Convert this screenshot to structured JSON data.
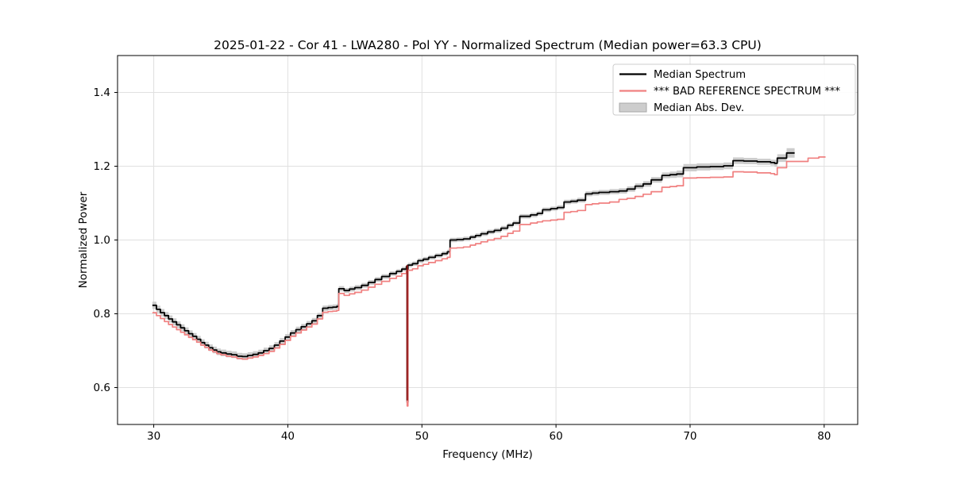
{
  "chart_data": {
    "type": "line",
    "title": "2025-01-22 - Cor 41 - LWA280 - Pol YY - Normalized Spectrum (Median power=63.3 CPU)",
    "xlabel": "Frequency (MHz)",
    "ylabel": "Normalized Power",
    "xlim": [
      27.3,
      82.5
    ],
    "ylim": [
      0.5,
      1.5
    ],
    "xticks": [
      30,
      40,
      50,
      60,
      70,
      80
    ],
    "yticks": [
      0.6,
      0.8,
      1.0,
      1.2,
      1.4
    ],
    "grid": true,
    "legend": {
      "position": "upper right"
    },
    "palette": {
      "median": "#000000",
      "reference": "#f08080",
      "mad_band": "#cdcdcd",
      "mad_edge": "#a8a8a8",
      "grid": "#e0e0e0",
      "spine": "#000000",
      "legend_border": "#cccccc",
      "notch_overlay": "#8b1414"
    },
    "rfi_notch": {
      "frequency": 48.9,
      "top": 0.932,
      "median_min": 0.56,
      "reference_min": 0.55
    },
    "series": [
      {
        "name": "Median Spectrum",
        "style": "line",
        "color": "#000000",
        "linewidth": 1.8,
        "x": [
          29.9,
          30.2,
          30.5,
          30.8,
          31.1,
          31.4,
          31.7,
          32.0,
          32.3,
          32.6,
          32.9,
          33.2,
          33.5,
          33.8,
          34.1,
          34.4,
          34.7,
          35.0,
          35.4,
          35.8,
          36.2,
          36.6,
          37.0,
          37.4,
          37.8,
          38.2,
          38.6,
          39.0,
          39.4,
          39.8,
          40.2,
          40.6,
          41.0,
          41.4,
          41.8,
          42.2,
          42.6,
          43.0,
          43.35,
          43.65,
          43.8,
          44.2,
          44.6,
          45.0,
          45.5,
          46.0,
          46.5,
          47.0,
          47.6,
          48.1,
          48.5,
          48.84,
          48.9,
          48.96,
          49.3,
          49.7,
          50.1,
          50.5,
          51.0,
          51.5,
          51.9,
          52.1,
          52.6,
          53.1,
          53.6,
          54.0,
          54.4,
          54.9,
          55.4,
          55.9,
          56.4,
          56.8,
          57.3,
          58.1,
          58.6,
          59.0,
          59.6,
          60.1,
          60.6,
          61.1,
          61.6,
          62.2,
          62.7,
          63.2,
          64.0,
          64.7,
          65.3,
          65.9,
          66.5,
          67.1,
          67.9,
          68.5,
          69.0,
          69.5,
          70.5,
          71.5,
          72.5,
          73.2,
          74.0,
          75.0,
          76.0,
          76.3,
          76.5,
          77.2,
          77.8
        ],
        "y": [
          0.823,
          0.812,
          0.803,
          0.795,
          0.786,
          0.778,
          0.77,
          0.762,
          0.754,
          0.746,
          0.739,
          0.731,
          0.722,
          0.715,
          0.708,
          0.702,
          0.697,
          0.694,
          0.691,
          0.689,
          0.685,
          0.684,
          0.687,
          0.69,
          0.694,
          0.7,
          0.706,
          0.715,
          0.726,
          0.737,
          0.748,
          0.757,
          0.765,
          0.773,
          0.781,
          0.795,
          0.815,
          0.817,
          0.818,
          0.82,
          0.868,
          0.863,
          0.867,
          0.871,
          0.877,
          0.885,
          0.893,
          0.901,
          0.909,
          0.915,
          0.921,
          0.928,
          0.56,
          0.932,
          0.936,
          0.944,
          0.948,
          0.953,
          0.958,
          0.963,
          0.968,
          1.0,
          1.001,
          1.003,
          1.008,
          1.012,
          1.017,
          1.022,
          1.026,
          1.032,
          1.04,
          1.046,
          1.064,
          1.068,
          1.072,
          1.082,
          1.085,
          1.088,
          1.103,
          1.105,
          1.108,
          1.125,
          1.127,
          1.129,
          1.131,
          1.133,
          1.138,
          1.146,
          1.152,
          1.163,
          1.175,
          1.177,
          1.179,
          1.196,
          1.198,
          1.199,
          1.201,
          1.215,
          1.214,
          1.212,
          1.21,
          1.208,
          1.222,
          1.236,
          1.236
        ]
      },
      {
        "name": "*** BAD REFERENCE SPECTRUM ***",
        "style": "line",
        "color": "#f08080",
        "linewidth": 1.7,
        "x": [
          29.9,
          30.2,
          30.5,
          30.8,
          31.1,
          31.4,
          31.7,
          32.0,
          32.3,
          32.6,
          32.9,
          33.2,
          33.5,
          33.8,
          34.1,
          34.4,
          34.7,
          35.0,
          35.4,
          35.8,
          36.2,
          36.6,
          37.0,
          37.4,
          37.8,
          38.2,
          38.6,
          39.0,
          39.4,
          39.8,
          40.2,
          40.6,
          41.0,
          41.4,
          41.8,
          42.2,
          42.6,
          43.0,
          43.35,
          43.65,
          43.8,
          44.2,
          44.6,
          45.0,
          45.5,
          46.0,
          46.5,
          47.0,
          47.6,
          48.1,
          48.5,
          48.84,
          48.9,
          48.96,
          49.3,
          49.7,
          50.1,
          50.5,
          51.0,
          51.5,
          51.9,
          52.1,
          52.6,
          53.1,
          53.6,
          54.0,
          54.4,
          54.9,
          55.4,
          55.9,
          56.4,
          56.8,
          57.3,
          58.1,
          58.6,
          59.0,
          59.6,
          60.1,
          60.6,
          61.1,
          61.6,
          62.2,
          62.7,
          63.2,
          64.0,
          64.7,
          65.3,
          65.9,
          66.5,
          67.1,
          67.9,
          68.5,
          69.0,
          69.5,
          70.5,
          71.5,
          72.5,
          73.2,
          74.0,
          75.0,
          76.0,
          76.3,
          76.5,
          77.2,
          77.8,
          78.2,
          78.8,
          79.3,
          79.6,
          80.1
        ],
        "y": [
          0.803,
          0.795,
          0.787,
          0.779,
          0.771,
          0.764,
          0.757,
          0.75,
          0.743,
          0.736,
          0.73,
          0.723,
          0.715,
          0.709,
          0.702,
          0.697,
          0.692,
          0.689,
          0.685,
          0.683,
          0.679,
          0.677,
          0.68,
          0.683,
          0.687,
          0.692,
          0.698,
          0.707,
          0.717,
          0.728,
          0.739,
          0.748,
          0.756,
          0.764,
          0.772,
          0.786,
          0.804,
          0.806,
          0.807,
          0.809,
          0.855,
          0.85,
          0.854,
          0.858,
          0.864,
          0.872,
          0.88,
          0.888,
          0.896,
          0.902,
          0.909,
          0.915,
          0.55,
          0.918,
          0.922,
          0.93,
          0.934,
          0.939,
          0.944,
          0.949,
          0.953,
          0.978,
          0.979,
          0.981,
          0.986,
          0.99,
          0.995,
          1.0,
          1.004,
          1.01,
          1.018,
          1.024,
          1.042,
          1.046,
          1.049,
          1.052,
          1.054,
          1.056,
          1.075,
          1.077,
          1.08,
          1.096,
          1.098,
          1.1,
          1.103,
          1.11,
          1.113,
          1.118,
          1.124,
          1.131,
          1.143,
          1.145,
          1.147,
          1.168,
          1.169,
          1.17,
          1.171,
          1.185,
          1.184,
          1.182,
          1.18,
          1.177,
          1.196,
          1.213,
          1.213,
          1.213,
          1.222,
          1.222,
          1.225,
          1.225
        ]
      },
      {
        "name": "Median Abs. Dev.",
        "style": "band",
        "color": "#cdcdcd",
        "center_series": "Median Spectrum",
        "halfwidth_x": [
          29.9,
          33.0,
          36.0,
          40.0,
          44.0,
          48.0,
          52.0,
          56.0,
          60.0,
          64.0,
          68.0,
          69.5,
          73.0,
          76.0,
          76.4,
          77.2,
          77.8
        ],
        "halfwidth": [
          0.01,
          0.009,
          0.009,
          0.008,
          0.007,
          0.006,
          0.006,
          0.006,
          0.006,
          0.007,
          0.008,
          0.01,
          0.009,
          0.008,
          0.01,
          0.013,
          0.013
        ]
      }
    ]
  }
}
